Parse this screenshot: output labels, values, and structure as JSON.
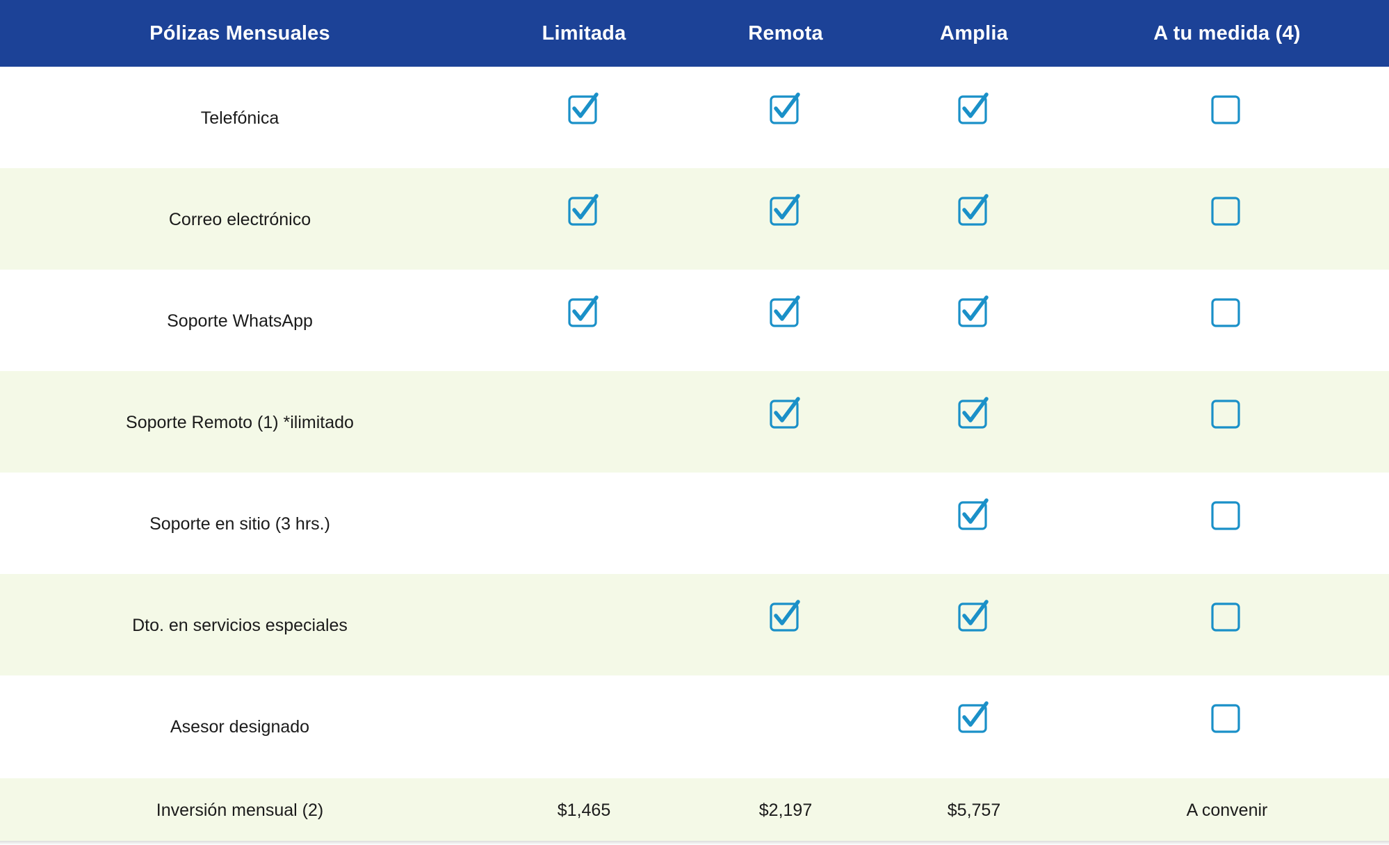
{
  "header": {
    "col0": "Pólizas Mensuales",
    "col1": "Limitada",
    "col2": "Remota",
    "col3": "Amplia",
    "col4": "A tu medida (4)"
  },
  "rows": [
    {
      "label": "Telefónica",
      "checks": [
        "checked",
        "checked",
        "checked",
        "unchecked"
      ]
    },
    {
      "label": "Correo electrónico",
      "checks": [
        "checked",
        "checked",
        "checked",
        "unchecked"
      ]
    },
    {
      "label": "Soporte WhatsApp",
      "checks": [
        "checked",
        "checked",
        "checked",
        "unchecked"
      ]
    },
    {
      "label": "Soporte Remoto (1) *ilimitado",
      "checks": [
        "none",
        "checked",
        "checked",
        "unchecked"
      ]
    },
    {
      "label": "Soporte en sitio (3 hrs.)",
      "checks": [
        "none",
        "none",
        "checked",
        "unchecked"
      ]
    },
    {
      "label": "Dto. en servicios especiales",
      "checks": [
        "none",
        "checked",
        "checked",
        "unchecked"
      ]
    },
    {
      "label": "Asesor designado",
      "checks": [
        "none",
        "none",
        "checked",
        "unchecked"
      ]
    }
  ],
  "footer": {
    "label": "Inversión mensual (2)",
    "col1": "$1,465",
    "col2": "$2,197",
    "col3": "$5,757",
    "col4": "A convenir"
  },
  "colors": {
    "header_bg": "#1c4297",
    "header_text": "#ffffff",
    "alt_row_bg": "#f4f9e7",
    "check_color": "#1a90c8"
  },
  "icons": {
    "checked": "checked-checkbox-icon",
    "unchecked": "empty-checkbox-icon"
  }
}
